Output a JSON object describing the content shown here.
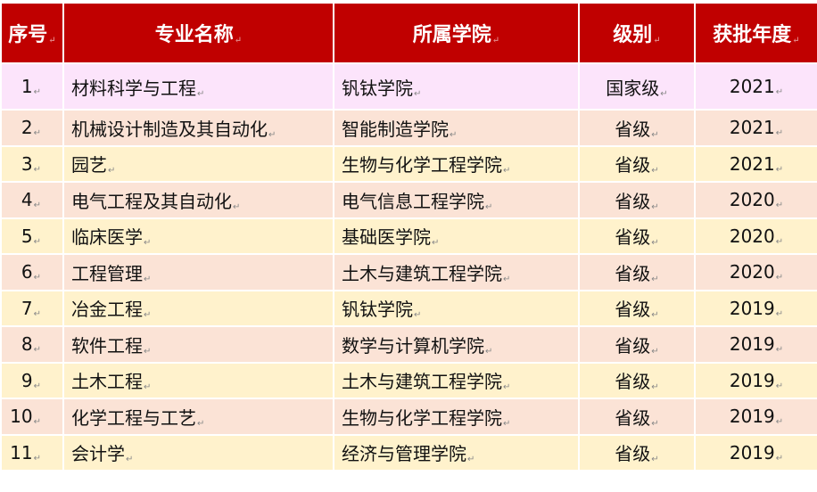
{
  "table": {
    "headers": [
      "序号",
      "专业名称",
      "所属学院",
      "级别",
      "获批年度"
    ],
    "rows": [
      {
        "no": "1",
        "major": "材料科学与工程",
        "college": "钒钛学院",
        "level": "国家级",
        "year": "2021"
      },
      {
        "no": "2",
        "major": "机械设计制造及其自动化",
        "college": "智能制造学院",
        "level": "省级",
        "year": "2021"
      },
      {
        "no": "3",
        "major": "园艺",
        "college": "生物与化学工程学院",
        "level": "省级",
        "year": "2021"
      },
      {
        "no": "4",
        "major": "电气工程及其自动化",
        "college": "电气信息工程学院",
        "level": "省级",
        "year": "2020"
      },
      {
        "no": "5",
        "major": "临床医学",
        "college": "基础医学院",
        "level": "省级",
        "year": "2020"
      },
      {
        "no": "6",
        "major": "工程管理",
        "college": "土木与建筑工程学院",
        "level": "省级",
        "year": "2020"
      },
      {
        "no": "7",
        "major": "冶金工程",
        "college": "钒钛学院",
        "level": "省级",
        "year": "2019"
      },
      {
        "no": "8",
        "major": "软件工程",
        "college": "数学与计算机学院",
        "level": "省级",
        "year": "2019"
      },
      {
        "no": "9",
        "major": "土木工程",
        "college": "土木与建筑工程学院",
        "level": "省级",
        "year": "2019"
      },
      {
        "no": "10",
        "major": "化学工程与工艺",
        "college": "生物与化学工程学院",
        "level": "省级",
        "year": "2019"
      },
      {
        "no": "11",
        "major": "会计学",
        "college": "经济与管理学院",
        "level": "省级",
        "year": "2019"
      }
    ]
  },
  "colors": {
    "header": "#c00000",
    "row_highlight": "#fce4fb",
    "row_peach": "#fbe3d6",
    "row_yellow": "#fff2cc"
  }
}
